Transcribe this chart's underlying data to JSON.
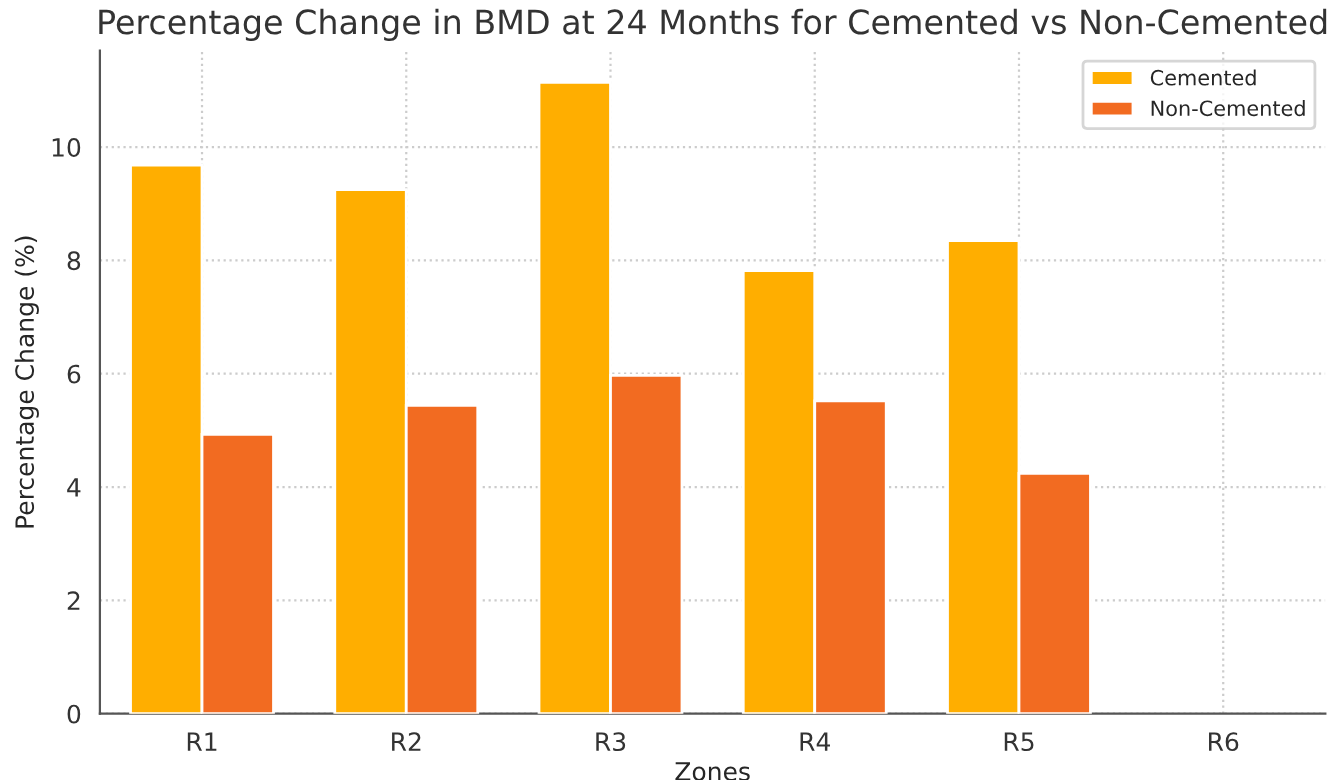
{
  "chart_data": {
    "type": "bar",
    "title": "Percentage Change in BMD at 24 Months for Cemented vs Non-Cemented",
    "xlabel": "Zones",
    "ylabel": "Percentage Change (%)",
    "categories": [
      "R1",
      "R2",
      "R3",
      "R4",
      "R5",
      "R6"
    ],
    "series": [
      {
        "name": "Cemented",
        "color": "#ffae00",
        "values": [
          9.68,
          9.25,
          11.14,
          7.82,
          8.35,
          null
        ]
      },
      {
        "name": "Non-Cemented",
        "color": "#f26b21",
        "values": [
          4.93,
          5.44,
          5.97,
          5.52,
          4.24,
          null
        ]
      }
    ],
    "ylim": [
      0,
      11.7
    ],
    "yticks": [
      0,
      2,
      4,
      6,
      8,
      10
    ],
    "grid": true,
    "legend": "top right"
  }
}
